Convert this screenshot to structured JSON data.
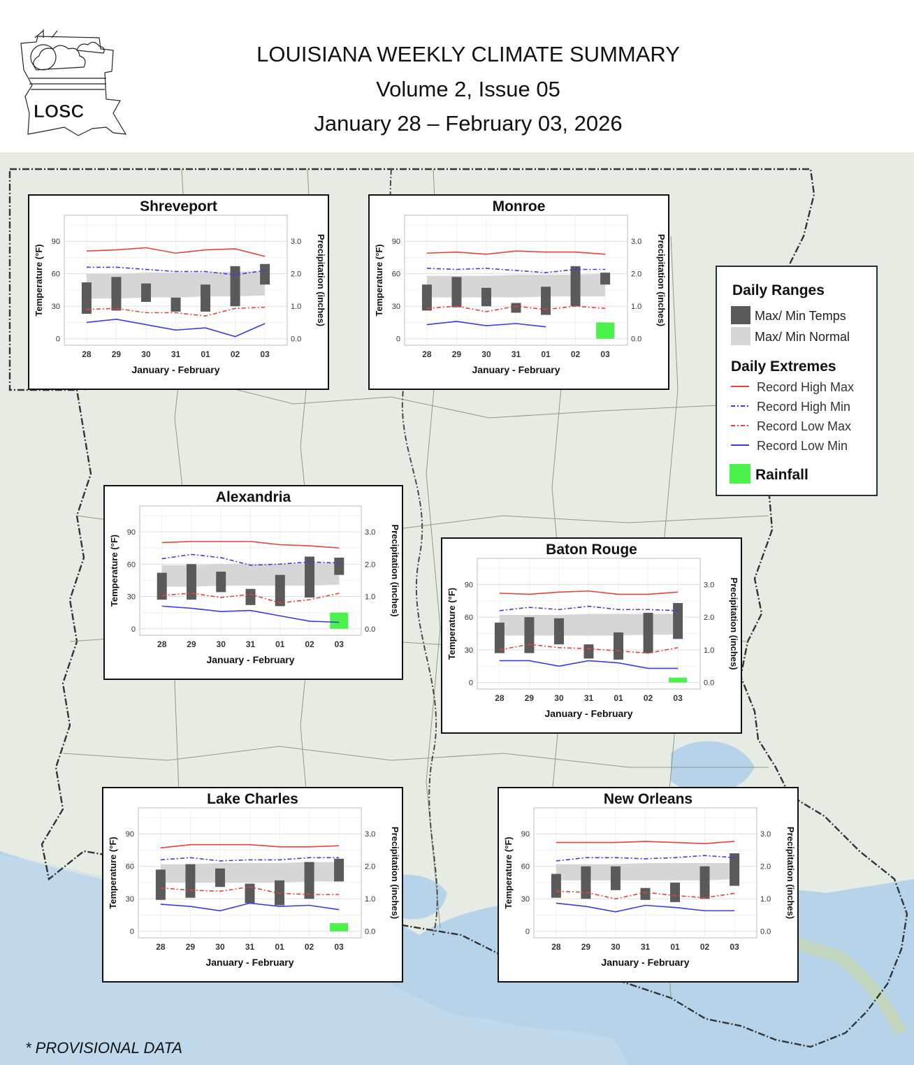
{
  "header": {
    "logo_text": "LOSC",
    "title": "LOUISIANA WEEKLY CLIMATE SUMMARY",
    "issue": "Volume 2, Issue 05",
    "dates": "January 28 – February 03, 2026"
  },
  "footnote": "* PROVISIONAL DATA",
  "legend": {
    "ranges_heading": "Daily Ranges",
    "max_min_temps": "Max/ Min Temps",
    "max_min_normal": "Max/ Min Normal",
    "extremes_heading": "Daily Extremes",
    "record_high_max": "Record High Max",
    "record_high_min": "Record High Min",
    "record_low_max": "Record Low Max",
    "record_low_min": "Record Low Min",
    "rainfall": "Rainfall"
  },
  "colors": {
    "record_high_max": "#e8403a",
    "record_high_min": "#3a3ae8",
    "record_low_max": "#e8403a",
    "record_low_min": "#3a3ae8",
    "temp_bar": "#5a5a5a",
    "normal_band": "#d6d6d6",
    "rainfall": "#4cf24c"
  },
  "chart_data": [
    {
      "type": "bar",
      "title": "Shreveport",
      "categories": [
        "28",
        "29",
        "30",
        "31",
        "01",
        "02",
        "03"
      ],
      "xlabel": "January - February",
      "ylabel": "Temperature (°F)",
      "y2label": "Precipitation (inches)",
      "yticks": [
        "0",
        "30",
        "60",
        "90"
      ],
      "y2ticks": [
        "0.0",
        "1.0",
        "2.0",
        "3.0"
      ],
      "ylim": [
        -6,
        114
      ],
      "series": [
        {
          "name": "Max/ Min Temps",
          "low": [
            23,
            26,
            34,
            25,
            25,
            30,
            50
          ],
          "high": [
            52,
            57,
            51,
            38,
            50,
            67,
            69
          ]
        },
        {
          "name": "Max/ Min Normal",
          "low": [
            37,
            37,
            38,
            38,
            39,
            39,
            40
          ],
          "high": [
            60,
            60,
            61,
            61,
            61,
            62,
            62
          ]
        },
        {
          "name": "Record High Max",
          "values": [
            81,
            82,
            84,
            79,
            82,
            83,
            76
          ]
        },
        {
          "name": "Record High Min",
          "values": [
            66,
            66,
            64,
            62,
            62,
            59,
            63
          ]
        },
        {
          "name": "Record Low Max",
          "values": [
            27,
            28,
            24,
            24,
            21,
            28,
            29
          ]
        },
        {
          "name": "Record Low Min",
          "values": [
            15,
            18,
            13,
            8,
            10,
            2,
            14
          ]
        },
        {
          "name": "Rainfall",
          "values": [
            0,
            0,
            0,
            0,
            0,
            0,
            0
          ]
        }
      ]
    },
    {
      "type": "bar",
      "title": "Monroe",
      "categories": [
        "28",
        "29",
        "30",
        "31",
        "01",
        "02",
        "03"
      ],
      "xlabel": "January - February",
      "ylabel": "Temperature (°F)",
      "y2label": "Precipitation (inches)",
      "yticks": [
        "0",
        "30",
        "60",
        "90"
      ],
      "y2ticks": [
        "0.0",
        "1.0",
        "2.0",
        "3.0"
      ],
      "ylim": [
        -6,
        114
      ],
      "series": [
        {
          "name": "Max/ Min Temps",
          "low": [
            26,
            29,
            30,
            24,
            22,
            30,
            50
          ],
          "high": [
            50,
            57,
            47,
            33,
            48,
            67,
            61
          ]
        },
        {
          "name": "Max/ Min Normal",
          "low": [
            38,
            38,
            38,
            38,
            39,
            39,
            39
          ],
          "high": [
            58,
            58,
            58,
            59,
            59,
            59,
            60
          ]
        },
        {
          "name": "Record High Max",
          "values": [
            79,
            80,
            78,
            81,
            80,
            80,
            78
          ]
        },
        {
          "name": "Record High Min",
          "values": [
            65,
            64,
            65,
            63,
            61,
            64,
            64
          ]
        },
        {
          "name": "Record Low Max",
          "values": [
            28,
            30,
            25,
            30,
            27,
            30,
            28
          ]
        },
        {
          "name": "Record Low Min",
          "values": [
            13,
            16,
            12,
            14,
            11,
            null,
            null
          ]
        },
        {
          "name": "Rainfall",
          "values": [
            0,
            0,
            0,
            0,
            0,
            0,
            0.5
          ]
        }
      ]
    },
    {
      "type": "bar",
      "title": "Alexandria",
      "categories": [
        "28",
        "29",
        "30",
        "31",
        "01",
        "02",
        "03"
      ],
      "xlabel": "January - February",
      "ylabel": "Temperature (°F)",
      "y2label": "Precipitation (inches)",
      "yticks": [
        "0",
        "30",
        "60",
        "90"
      ],
      "y2ticks": [
        "0.0",
        "1.0",
        "2.0",
        "3.0"
      ],
      "ylim": [
        -6,
        114
      ],
      "series": [
        {
          "name": "Max/ Min Temps",
          "low": [
            27,
            27,
            34,
            22,
            21,
            29,
            50
          ],
          "high": [
            52,
            60,
            53,
            37,
            50,
            67,
            66
          ]
        },
        {
          "name": "Max/ Min Normal",
          "low": [
            39,
            39,
            40,
            40,
            40,
            40,
            41
          ],
          "high": [
            59,
            59,
            60,
            60,
            60,
            61,
            61
          ]
        },
        {
          "name": "Record High Max",
          "values": [
            80,
            81,
            81,
            81,
            78,
            77,
            75
          ]
        },
        {
          "name": "Record High Min",
          "values": [
            65,
            69,
            66,
            59,
            60,
            62,
            61
          ]
        },
        {
          "name": "Record Low Max",
          "values": [
            31,
            33,
            29,
            32,
            24,
            27,
            33
          ]
        },
        {
          "name": "Record Low Min",
          "values": [
            21,
            19,
            16,
            17,
            12,
            7,
            6
          ]
        },
        {
          "name": "Rainfall",
          "values": [
            0,
            0,
            0,
            0,
            0,
            0,
            0.5
          ]
        }
      ]
    },
    {
      "type": "bar",
      "title": "Baton Rouge",
      "categories": [
        "28",
        "29",
        "30",
        "31",
        "01",
        "02",
        "03"
      ],
      "xlabel": "January - February",
      "ylabel": "Temperature (°F)",
      "y2label": "Precipitation (inches)",
      "yticks": [
        "0",
        "30",
        "60",
        "90"
      ],
      "y2ticks": [
        "0.0",
        "1.0",
        "2.0",
        "3.0"
      ],
      "ylim": [
        -6,
        114
      ],
      "series": [
        {
          "name": "Max/ Min Temps",
          "low": [
            27,
            27,
            35,
            22,
            21,
            27,
            40
          ],
          "high": [
            55,
            60,
            59,
            35,
            46,
            64,
            73
          ]
        },
        {
          "name": "Max/ Min Normal",
          "low": [
            43,
            43,
            43,
            43,
            43,
            44,
            44
          ],
          "high": [
            62,
            62,
            62,
            63,
            63,
            63,
            63
          ]
        },
        {
          "name": "Record High Max",
          "values": [
            82,
            81,
            83,
            84,
            81,
            81,
            83
          ]
        },
        {
          "name": "Record High Min",
          "values": [
            66,
            69,
            67,
            70,
            67,
            67,
            66
          ]
        },
        {
          "name": "Record Low Max",
          "values": [
            30,
            35,
            32,
            31,
            29,
            27,
            32
          ]
        },
        {
          "name": "Record Low Min",
          "values": [
            20,
            20,
            15,
            20,
            18,
            13,
            13
          ]
        },
        {
          "name": "Rainfall",
          "values": [
            0,
            0,
            0,
            0,
            0,
            0,
            0.15
          ]
        }
      ]
    },
    {
      "type": "bar",
      "title": "Lake Charles",
      "categories": [
        "28",
        "29",
        "30",
        "31",
        "01",
        "02",
        "03"
      ],
      "xlabel": "January - February",
      "ylabel": "Temperature (°F)",
      "y2label": "Precipitation (inches)",
      "yticks": [
        "0",
        "30",
        "60",
        "90"
      ],
      "y2ticks": [
        "0.0",
        "1.0",
        "2.0",
        "3.0"
      ],
      "ylim": [
        -6,
        114
      ],
      "series": [
        {
          "name": "Max/ Min Temps",
          "low": [
            29,
            31,
            41,
            26,
            24,
            30,
            46
          ],
          "high": [
            57,
            62,
            58,
            44,
            47,
            64,
            67
          ]
        },
        {
          "name": "Max/ Min Normal",
          "low": [
            45,
            45,
            45,
            45,
            45,
            46,
            46
          ],
          "high": [
            62,
            62,
            63,
            63,
            63,
            64,
            64
          ]
        },
        {
          "name": "Record High Max",
          "values": [
            77,
            80,
            80,
            80,
            78,
            78,
            79
          ]
        },
        {
          "name": "Record High Min",
          "values": [
            66,
            68,
            65,
            66,
            66,
            68,
            68
          ]
        },
        {
          "name": "Record Low Max",
          "values": [
            40,
            38,
            37,
            41,
            35,
            34,
            34
          ]
        },
        {
          "name": "Record Low Min",
          "values": [
            25,
            23,
            19,
            26,
            23,
            24,
            20
          ]
        },
        {
          "name": "Rainfall",
          "values": [
            0,
            0,
            0,
            0,
            0,
            0,
            0.25
          ]
        }
      ]
    },
    {
      "type": "bar",
      "title": "New Orleans",
      "categories": [
        "28",
        "29",
        "30",
        "31",
        "01",
        "02",
        "03"
      ],
      "xlabel": "January - February",
      "ylabel": "Temperature (°F)",
      "y2label": "Precipitation (inches)",
      "yticks": [
        "0",
        "30",
        "60",
        "90"
      ],
      "y2ticks": [
        "0.0",
        "1.0",
        "2.0",
        "3.0"
      ],
      "ylim": [
        -6,
        114
      ],
      "series": [
        {
          "name": "Max/ Min Temps",
          "low": [
            31,
            30,
            38,
            29,
            27,
            30,
            42
          ],
          "high": [
            53,
            60,
            60,
            40,
            45,
            60,
            72
          ]
        },
        {
          "name": "Max/ Min Normal",
          "low": [
            47,
            47,
            47,
            47,
            47,
            47,
            48
          ],
          "high": [
            62,
            62,
            62,
            63,
            63,
            63,
            63
          ]
        },
        {
          "name": "Record High Max",
          "values": [
            82,
            82,
            82,
            83,
            82,
            81,
            83
          ]
        },
        {
          "name": "Record High Min",
          "values": [
            65,
            68,
            68,
            67,
            68,
            70,
            68
          ]
        },
        {
          "name": "Record Low Max",
          "values": [
            37,
            36,
            30,
            36,
            33,
            31,
            35
          ]
        },
        {
          "name": "Record Low Min",
          "values": [
            26,
            23,
            18,
            24,
            22,
            19,
            19
          ]
        },
        {
          "name": "Rainfall",
          "values": [
            0,
            0,
            0,
            0,
            0,
            0,
            0
          ]
        }
      ]
    }
  ]
}
